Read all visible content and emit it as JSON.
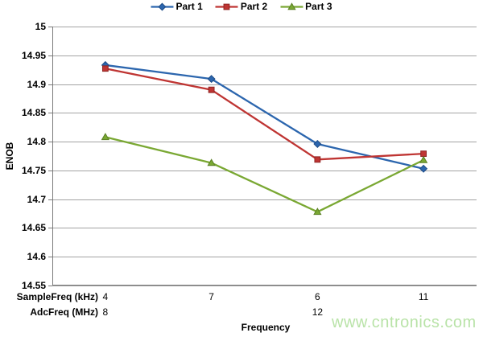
{
  "watermark": {
    "text": "www.cntronics.com",
    "color": "#b9e3a8"
  },
  "chart_data": {
    "type": "line",
    "title": "",
    "ylabel": "ENOB",
    "xlabel": "Frequency",
    "ylim": [
      14.55,
      15
    ],
    "yticks": [
      "15",
      "14.95",
      "14.9",
      "14.85",
      "14.8",
      "14.75",
      "14.7",
      "14.65",
      "14.6",
      "14.55"
    ],
    "categories": [
      "4",
      "7",
      "6",
      "11"
    ],
    "x_axis_rows": [
      {
        "label": "SampleFreq (kHz)",
        "values": [
          "4",
          "7",
          "6",
          "11"
        ]
      },
      {
        "label": "AdcFreq (MHz)",
        "values": [
          "8",
          "",
          "12",
          ""
        ]
      }
    ],
    "grid": true,
    "legend": {
      "position": "top",
      "entries": [
        "Part 1",
        "Part 2",
        "Part 3"
      ]
    },
    "series": [
      {
        "name": "Part 1",
        "marker": "diamond",
        "color": "#2c66ae",
        "marker_border": "#1d4b86",
        "values": [
          14.933,
          14.909,
          14.796,
          14.753
        ]
      },
      {
        "name": "Part 2",
        "marker": "square",
        "color": "#bf3533",
        "marker_border": "#8f2523",
        "values": [
          14.927,
          14.89,
          14.769,
          14.779
        ]
      },
      {
        "name": "Part 3",
        "marker": "triangle",
        "color": "#7aa833",
        "marker_border": "#5a7f24",
        "values": [
          14.808,
          14.763,
          14.678,
          14.768
        ]
      }
    ],
    "colors": {
      "gridline": "#a3a3a3",
      "axis": "#7a7a7a"
    }
  }
}
